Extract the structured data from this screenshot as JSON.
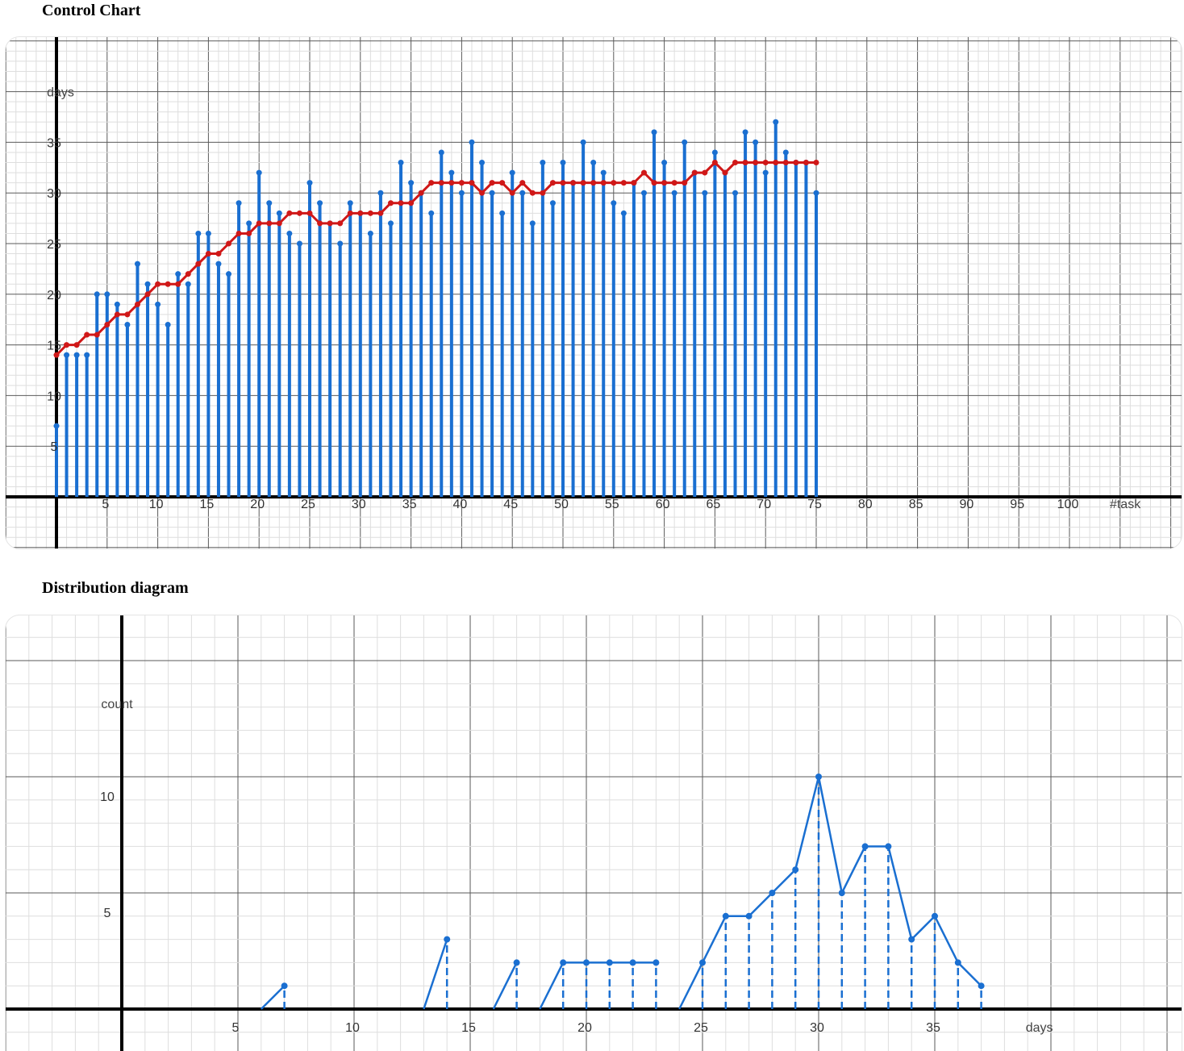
{
  "sections": {
    "control_title": "Control Chart",
    "distribution_title": "Distribution diagram"
  },
  "colors": {
    "bar": "#1a6fd1",
    "average_line": "#d01818",
    "grid_minor": "#dedede",
    "grid_major": "#5a5a5a",
    "axis": "#000000"
  },
  "chart_data": [
    {
      "type": "bar",
      "title": "Control Chart",
      "xlabel": "#task",
      "ylabel": "days",
      "xlim": [
        0,
        110
      ],
      "ylim": [
        -5,
        40
      ],
      "x_ticks": [
        5,
        10,
        15,
        20,
        25,
        30,
        35,
        40,
        45,
        50,
        55,
        60,
        65,
        70,
        75,
        80,
        85,
        90,
        95,
        100
      ],
      "y_ticks": [
        5,
        10,
        15,
        20,
        25,
        30,
        35
      ],
      "grid": true,
      "series": [
        {
          "style": "stem-bars",
          "x": [
            0,
            1,
            2,
            3,
            4,
            5,
            6,
            7,
            8,
            9,
            10,
            11,
            12,
            13,
            14,
            15,
            16,
            17,
            18,
            19,
            20,
            21,
            22,
            23,
            24,
            25,
            26,
            27,
            28,
            29,
            30,
            31,
            32,
            33,
            34,
            35,
            36,
            37,
            38,
            39,
            40,
            41,
            42,
            43,
            44,
            45,
            46,
            47,
            48,
            49,
            50,
            51,
            52,
            53,
            54,
            55,
            56,
            57,
            58,
            59,
            60,
            61,
            62,
            63,
            64,
            65,
            66,
            67,
            68,
            69,
            70,
            71,
            72,
            73,
            74,
            75
          ],
          "values": [
            7,
            14,
            14,
            14,
            20,
            20,
            19,
            17,
            23,
            21,
            19,
            17,
            22,
            21,
            26,
            26,
            23,
            22,
            29,
            27,
            32,
            29,
            28,
            26,
            25,
            31,
            29,
            27,
            25,
            29,
            28,
            26,
            30,
            27,
            33,
            31,
            30,
            28,
            34,
            32,
            30,
            35,
            33,
            30,
            28,
            32,
            30,
            27,
            33,
            29,
            33,
            31,
            35,
            33,
            32,
            29,
            28,
            31,
            30,
            36,
            33,
            30,
            35,
            32,
            30,
            34,
            32,
            30,
            36,
            35,
            32,
            37,
            34,
            33,
            33,
            30
          ]
        },
        {
          "style": "line",
          "x": [
            0,
            1,
            2,
            3,
            4,
            5,
            6,
            7,
            8,
            9,
            10,
            11,
            12,
            13,
            14,
            15,
            16,
            17,
            18,
            19,
            20,
            21,
            22,
            23,
            24,
            25,
            26,
            27,
            28,
            29,
            30,
            31,
            32,
            33,
            34,
            35,
            36,
            37,
            38,
            39,
            40,
            41,
            42,
            43,
            44,
            45,
            46,
            47,
            48,
            49,
            50,
            51,
            52,
            53,
            54,
            55,
            56,
            57,
            58,
            59,
            60,
            61,
            62,
            63,
            64,
            65,
            66,
            67,
            68,
            69,
            70,
            71,
            72,
            73,
            74,
            75
          ],
          "values": [
            14,
            15,
            15,
            16,
            16,
            17,
            18,
            18,
            19,
            20,
            21,
            21,
            21,
            22,
            23,
            24,
            24,
            25,
            26,
            26,
            27,
            27,
            27,
            28,
            28,
            28,
            27,
            27,
            27,
            28,
            28,
            28,
            28,
            29,
            29,
            29,
            30,
            31,
            31,
            31,
            31,
            31,
            30,
            31,
            31,
            30,
            31,
            30,
            30,
            31,
            31,
            31,
            31,
            31,
            31,
            31,
            31,
            31,
            32,
            31,
            31,
            31,
            31,
            32,
            32,
            33,
            32,
            33,
            33,
            33,
            33,
            33,
            33,
            33,
            33,
            33
          ]
        }
      ]
    },
    {
      "type": "line",
      "title": "Distribution diagram",
      "xlabel": "days",
      "ylabel": "count",
      "xlim": [
        -5,
        45
      ],
      "ylim": [
        -1,
        17
      ],
      "x_ticks": [
        5,
        10,
        15,
        20,
        25,
        30,
        35
      ],
      "y_ticks": [
        5,
        10
      ],
      "grid": true,
      "series": [
        {
          "style": "line-with-dashed-stems",
          "segments": [
            {
              "x": [
                6,
                7
              ],
              "y": [
                0,
                1
              ]
            },
            {
              "x": [
                13,
                14
              ],
              "y": [
                0,
                3
              ]
            },
            {
              "x": [
                16,
                17
              ],
              "y": [
                0,
                2
              ]
            },
            {
              "x": [
                18,
                19,
                20,
                21,
                22,
                23
              ],
              "y": [
                0,
                2,
                2,
                2,
                2,
                2
              ]
            },
            {
              "x": [
                24,
                25,
                26,
                27,
                28,
                29,
                30,
                31,
                32,
                33,
                34,
                35,
                36,
                37
              ],
              "y": [
                0,
                2,
                4,
                4,
                5,
                6,
                10,
                5,
                7,
                7,
                3,
                4,
                2,
                1
              ]
            }
          ],
          "points": {
            "x": [
              7,
              14,
              17,
              19,
              20,
              21,
              22,
              23,
              25,
              26,
              27,
              28,
              29,
              30,
              31,
              32,
              33,
              34,
              35,
              36,
              37
            ],
            "y": [
              1,
              3,
              2,
              2,
              2,
              2,
              2,
              2,
              2,
              4,
              4,
              5,
              6,
              10,
              5,
              7,
              7,
              3,
              4,
              2,
              1
            ]
          }
        }
      ]
    }
  ]
}
